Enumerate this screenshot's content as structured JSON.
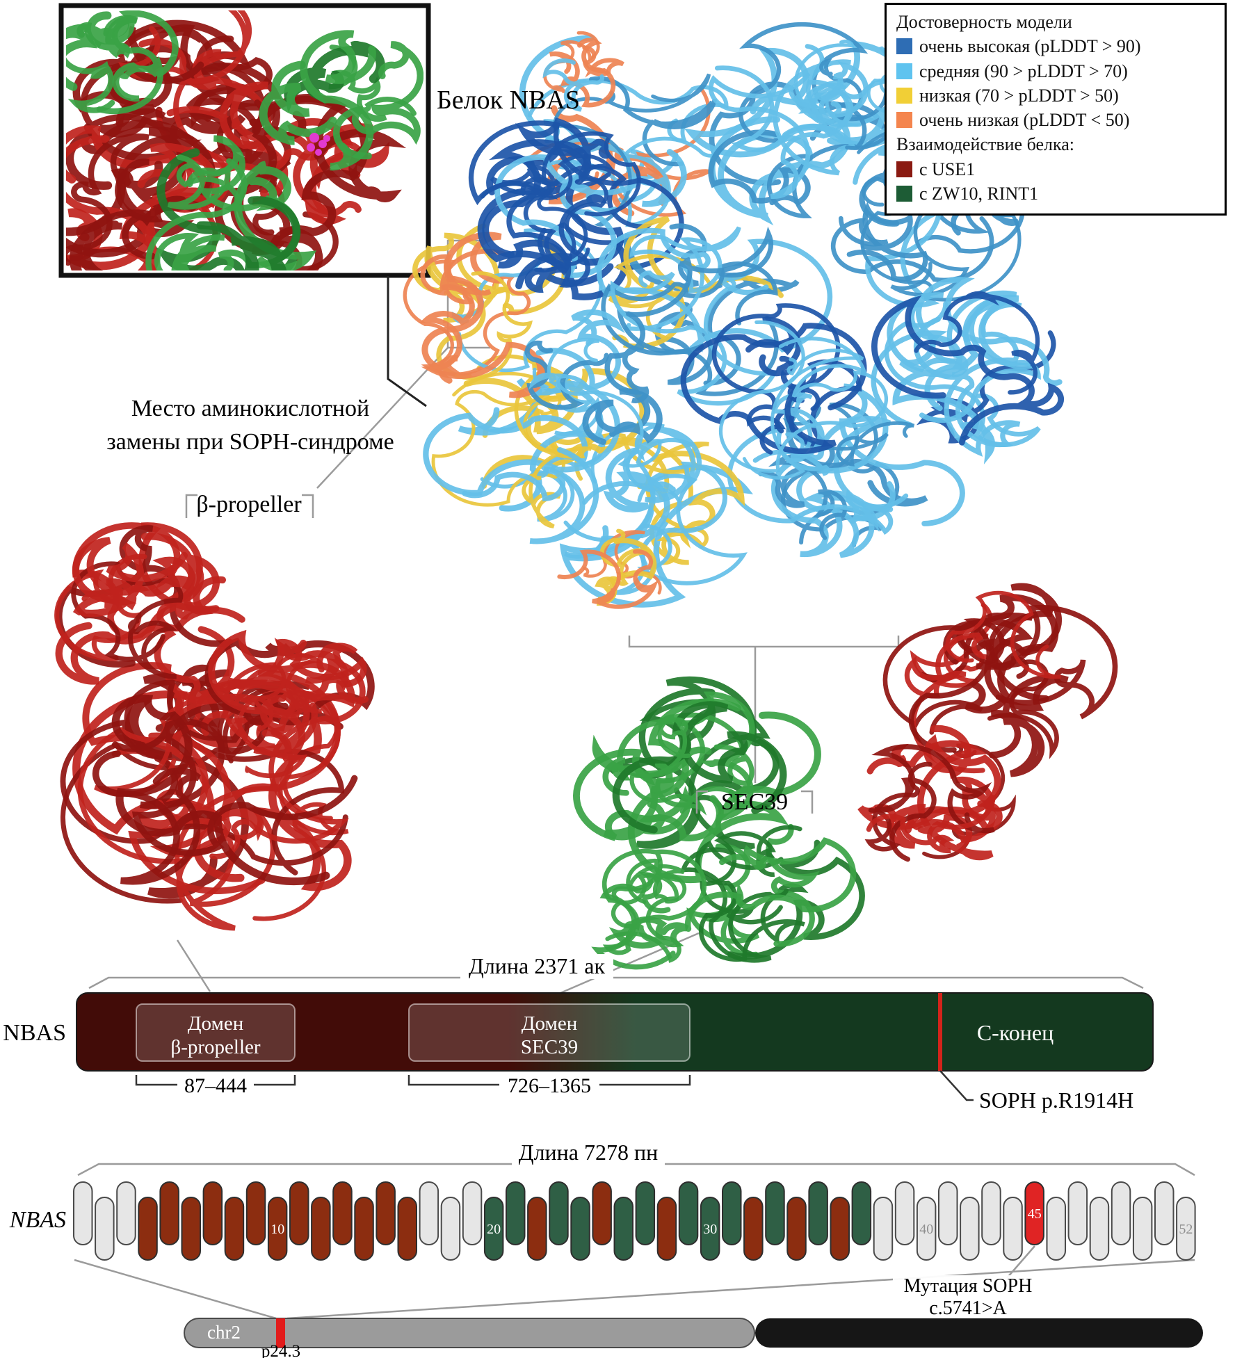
{
  "legend": {
    "title": "Достоверность модели",
    "items": [
      {
        "label": "очень высокая (pLDDT > 90)",
        "color": "#2e6db4"
      },
      {
        "label": "средняя (90 > pLDDT > 70)",
        "color": "#5fc3ef"
      },
      {
        "label": "низкая (70 > pLDDT > 50)",
        "color": "#f1cf36"
      },
      {
        "label": "очень низкая (pLDDT < 50)",
        "color": "#f4854e"
      }
    ],
    "interaction_title": "Взаимодействие белка:",
    "interaction_items": [
      {
        "label": "с USE1",
        "color": "#8a1a12"
      },
      {
        "label": "с ZW10, RINT1",
        "color": "#1d5c35"
      }
    ]
  },
  "annotations": {
    "protein_title": "Белок NBAS",
    "site_line1": "Место аминокислотной",
    "site_line2": "замены при SOPH-синдроме",
    "beta_propeller": "β-propeller",
    "sec39": "SEC39"
  },
  "protein_bar": {
    "name": "NBAS",
    "length_label": "Длина 2371 ак",
    "domain_beta_line1": "Домен",
    "domain_beta_line2": "β-propeller",
    "domain_beta_range": "87–444",
    "domain_sec39_line1": "Домен",
    "domain_sec39_line2": "SEC39",
    "domain_sec39_range": "726–1365",
    "c_terminus": "С-конец",
    "mutation_label": "SOPH p.R1914H"
  },
  "gene": {
    "name": "NBAS",
    "length_label": "Длина 7278 пн",
    "mutation_line1": "Мутация SOPH",
    "mutation_line2": "c.5741>A",
    "exon_count": 52,
    "numbered_exons": [
      10,
      20,
      30,
      40,
      45,
      52
    ],
    "pattern": [
      "g",
      "g",
      "g",
      "b",
      "b",
      "b",
      "b",
      "b",
      "b",
      "b",
      "b",
      "b",
      "b",
      "b",
      "b",
      "b",
      "g",
      "g",
      "g",
      "n",
      "n",
      "b",
      "n",
      "n",
      "b",
      "n",
      "n",
      "b",
      "n",
      "n",
      "n",
      "b",
      "n",
      "b",
      "n",
      "b",
      "n",
      "g",
      "g",
      "g",
      "g",
      "g",
      "g",
      "g",
      "r",
      "g",
      "g",
      "g",
      "g",
      "g",
      "g",
      "g"
    ]
  },
  "chromosome": {
    "name": "chr2",
    "band": "p24.3"
  },
  "colors": {
    "plddt_very_high": "#2e6db4",
    "plddt_medium": "#5fc3ef",
    "plddt_low": "#f1cf36",
    "plddt_very_low": "#f4854e",
    "use1": "#8a1a12",
    "zw10_rint1": "#1d5c35",
    "bar_maroon": "#420c08",
    "bar_green": "#14391f",
    "mutation_red": "#d3241b",
    "exon_gray": "#e6e6e6",
    "exon_brown": "#8c2d10",
    "exon_green": "#2f5f45",
    "exon_red": "#e02424",
    "chromosome_gray": "#9b9b9b",
    "chromosome_black": "#161616",
    "band_red": "#e21b1b",
    "ribbon_red": "#c0231d",
    "ribbon_red_dark": "#8f1310",
    "ribbon_green": "#3aa345",
    "ribbon_green_dark": "#1f7a2b",
    "ribbon_light_blue": "#64bfe8",
    "ribbon_blue": "#3f93c8",
    "ribbon_dark_blue": "#1d55a8",
    "ribbon_yellow": "#e9c63c",
    "ribbon_orange": "#ee8352",
    "mutation_magenta": "#e23ad0"
  }
}
